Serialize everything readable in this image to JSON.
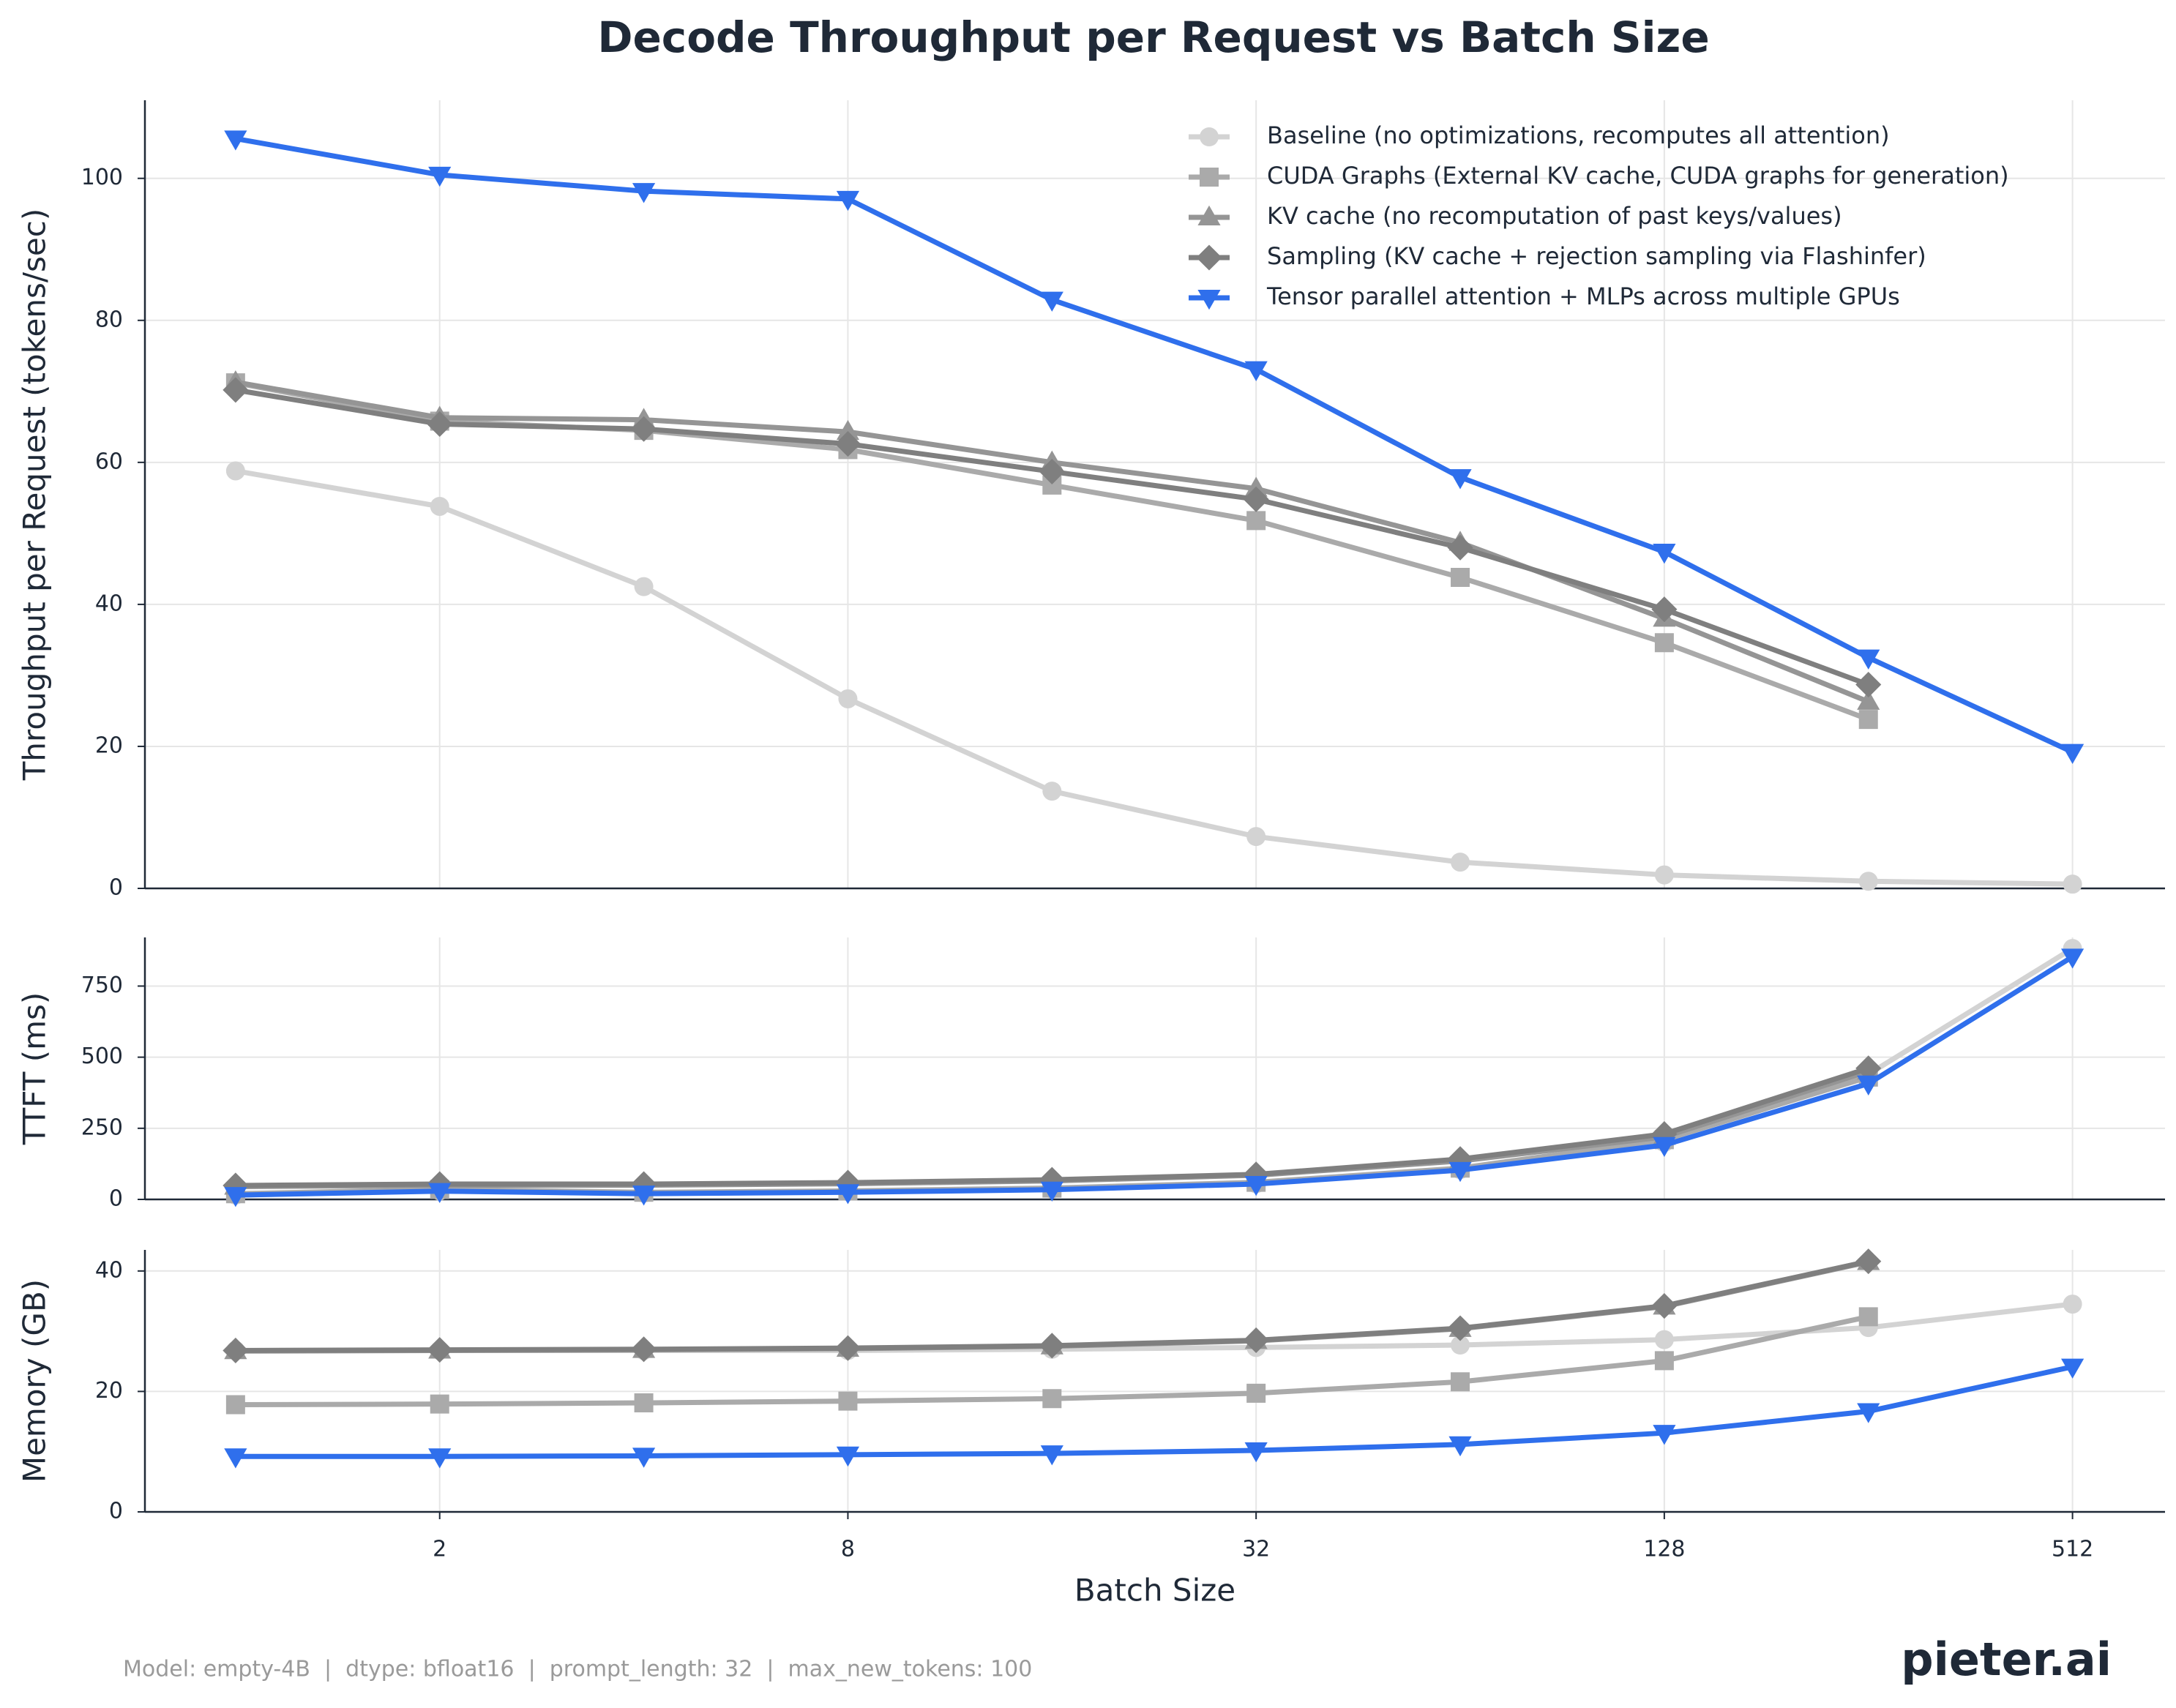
{
  "chart_data": [
    {
      "type": "line",
      "title": "Decode Throughput per Request vs Batch Size",
      "ylabel": "Throughput per Request (tokens/sec)",
      "xscale": "log",
      "xbase": 2,
      "xlim": [
        0.735,
        701
      ],
      "xticks": [
        2,
        8,
        32,
        128,
        512
      ],
      "ylim": [
        0,
        111
      ],
      "yticks": [
        0,
        20,
        40,
        60,
        80,
        100
      ],
      "grid": true,
      "legend": "upper right",
      "x": [
        1,
        2,
        4,
        8,
        16,
        32,
        64,
        128,
        256,
        512
      ],
      "series": [
        {
          "name": "Baseline (no optimizations, recomputes all attention)",
          "color": "#d3d3d3",
          "marker": "circle",
          "values": [
            58.8,
            53.8,
            42.5,
            26.7,
            13.7,
            7.3,
            3.7,
            1.9,
            1.0,
            0.6
          ]
        },
        {
          "name": "CUDA Graphs (External KV cache, CUDA graphs for generation)",
          "color": "#aaaaaa",
          "marker": "square",
          "values": [
            71.2,
            65.8,
            64.5,
            61.8,
            56.8,
            51.8,
            43.8,
            34.6,
            23.8,
            null
          ]
        },
        {
          "name": "KV cache (no recomputation of past keys/values)",
          "color": "#959595",
          "marker": "triangle-up",
          "values": [
            71.3,
            66.3,
            66.0,
            64.3,
            60.0,
            56.3,
            48.7,
            38.0,
            26.3,
            null
          ]
        },
        {
          "name": "Sampling (KV cache + rejection sampling via Flashinfer)",
          "color": "#7f7f7f",
          "marker": "diamond",
          "values": [
            70.2,
            65.4,
            64.7,
            62.6,
            58.7,
            54.8,
            48.0,
            39.3,
            28.7,
            null
          ]
        },
        {
          "name": "Tensor parallel attention + MLPs across multiple GPUs",
          "color": "#2f6fec",
          "marker": "triangle-down",
          "values": [
            105.6,
            100.5,
            98.2,
            97.1,
            82.9,
            73.1,
            57.9,
            47.4,
            32.5,
            19.2
          ]
        }
      ]
    },
    {
      "type": "line",
      "ylabel": "TTFT (ms)",
      "xscale": "log",
      "xbase": 2,
      "xlim": [
        0.735,
        701
      ],
      "xticks": [
        2,
        8,
        32,
        128,
        512
      ],
      "ylim": [
        0,
        921
      ],
      "yticks": [
        0,
        250,
        500,
        750
      ],
      "grid": true,
      "x": [
        1,
        2,
        4,
        8,
        16,
        32,
        64,
        128,
        256,
        512
      ],
      "series": [
        {
          "color": "#d3d3d3",
          "marker": "circle",
          "values": [
            15,
            30,
            22,
            27,
            36,
            55,
            105,
            200,
            440,
            882
          ]
        },
        {
          "color": "#aaaaaa",
          "marker": "square",
          "values": [
            20,
            35,
            25,
            30,
            40,
            60,
            110,
            210,
            430,
            null
          ]
        },
        {
          "color": "#959595",
          "marker": "triangle-up",
          "values": [
            45,
            50,
            50,
            55,
            65,
            85,
            135,
            220,
            450,
            null
          ]
        },
        {
          "color": "#7f7f7f",
          "marker": "diamond",
          "values": [
            49,
            54,
            54,
            59,
            69,
            88,
            142,
            230,
            461,
            null
          ]
        },
        {
          "color": "#2f6fec",
          "marker": "triangle-down",
          "values": [
            15,
            29,
            20,
            25,
            34,
            54,
            103,
            191,
            407,
            853
          ]
        }
      ]
    },
    {
      "type": "line",
      "ylabel": "Memory (GB)",
      "xlabel": "Batch Size",
      "xscale": "log",
      "xbase": 2,
      "xlim": [
        0.735,
        701
      ],
      "xticks": [
        2,
        8,
        32,
        128,
        512
      ],
      "ylim": [
        0,
        43.5
      ],
      "yticks": [
        0,
        20,
        40
      ],
      "grid": true,
      "x": [
        1,
        2,
        4,
        8,
        16,
        32,
        64,
        128,
        256,
        512
      ],
      "series": [
        {
          "color": "#d3d3d3",
          "marker": "circle",
          "values": [
            26.8,
            26.8,
            26.8,
            26.8,
            27.0,
            27.3,
            27.7,
            28.6,
            30.6,
            34.5
          ]
        },
        {
          "color": "#aaaaaa",
          "marker": "square",
          "values": [
            17.8,
            17.9,
            18.1,
            18.4,
            18.8,
            19.7,
            21.6,
            25.1,
            32.4,
            null
          ]
        },
        {
          "color": "#959595",
          "marker": "triangle-up",
          "values": [
            26.7,
            26.8,
            26.9,
            27.1,
            27.5,
            28.4,
            30.4,
            34.1,
            41.5,
            null
          ]
        },
        {
          "color": "#7f7f7f",
          "marker": "diamond",
          "values": [
            26.8,
            26.9,
            27.0,
            27.2,
            27.6,
            28.5,
            30.5,
            34.2,
            41.6,
            null
          ]
        },
        {
          "color": "#2f6fec",
          "marker": "triangle-down",
          "values": [
            9.2,
            9.2,
            9.3,
            9.5,
            9.7,
            10.2,
            11.2,
            13.1,
            16.7,
            24.1
          ]
        }
      ]
    }
  ],
  "footer": {
    "note": "Model: empty-4B  |  dtype: bfloat16  |  prompt_length: 32  |  max_new_tokens: 100",
    "logo": "pieter.ai"
  }
}
